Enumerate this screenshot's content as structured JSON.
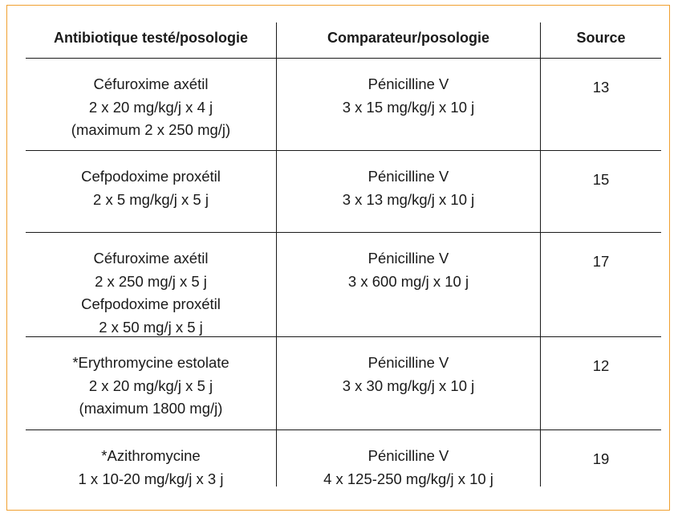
{
  "headers": [
    "Antibiotique  testé/posologie",
    "Comparateur/posologie",
    "Source"
  ],
  "rows": [
    {
      "tested": [
        "Céfuroxime axétil",
        "2 x 20 mg/kg/j x 4 j",
        "(maximum 2 x 250 mg/j)"
      ],
      "comparator": [
        "Pénicilline V",
        "3 x 15 mg/kg/j x 10 j"
      ],
      "source": "13"
    },
    {
      "tested": [
        "Cefpodoxime proxétil",
        "2 x 5 mg/kg/j x 5 j"
      ],
      "comparator": [
        "Pénicilline V",
        "3 x 13 mg/kg/j x 10 j"
      ],
      "source": "15"
    },
    {
      "tested": [
        "Céfuroxime axétil",
        "2 x 250 mg/j x 5 j",
        "Cefpodoxime proxétil",
        "2 x 50 mg/j x 5 j"
      ],
      "comparator": [
        "Pénicilline V",
        "3 x 600 mg/j x 10 j"
      ],
      "source": "17"
    },
    {
      "tested": [
        "*Erythromycine estolate",
        "2 x 20 mg/kg/j x 5 j",
        "(maximum 1800 mg/j)"
      ],
      "comparator": [
        "Pénicilline V",
        "3 x 30 mg/kg/j x 10 j"
      ],
      "source": "12"
    },
    {
      "tested": [
        "*Azithromycine",
        "1 x 10-20 mg/kg/j x 3 j"
      ],
      "comparator": [
        "Pénicilline V",
        "4 x 125-250 mg/kg/j x 10 j"
      ],
      "source": "19"
    }
  ],
  "colors": {
    "frame": "#f0a030",
    "rules": "#1a1a1a"
  }
}
